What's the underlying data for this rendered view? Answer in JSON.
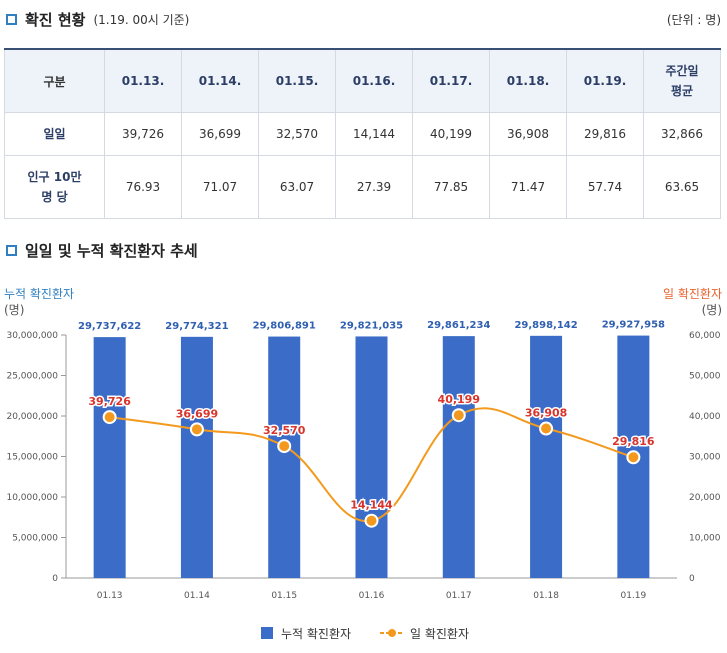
{
  "section1": {
    "title": "확진 현황",
    "subtitle": "(1.19. 00시 기준)",
    "unit": "(단위 : 명)"
  },
  "table": {
    "headers": [
      "구분",
      "01.13.",
      "01.14.",
      "01.15.",
      "01.16.",
      "01.17.",
      "01.18.",
      "01.19.",
      "주간일 평균"
    ],
    "rows": [
      {
        "label": "일일",
        "values": [
          "39,726",
          "36,699",
          "32,570",
          "14,144",
          "40,199",
          "36,908",
          "29,816",
          "32,866"
        ]
      },
      {
        "label": "인구 10만 명 당",
        "values": [
          "76.93",
          "71.07",
          "63.07",
          "27.39",
          "77.85",
          "71.47",
          "57.74",
          "63.65"
        ]
      }
    ]
  },
  "section2": {
    "title": "일일 및 누적 확진환자 추세"
  },
  "chart_data": {
    "type": "bar",
    "categories": [
      "01.13",
      "01.14",
      "01.15",
      "01.16",
      "01.17",
      "01.18",
      "01.19"
    ],
    "series": [
      {
        "name": "누적 확진환자",
        "type": "bar",
        "axis": "left",
        "values": [
          29737622,
          29774321,
          29806891,
          29821035,
          29861234,
          29898142,
          29927958
        ],
        "labels": [
          "29,737,622",
          "29,774,321",
          "29,806,891",
          "29,821,035",
          "29,861,234",
          "29,898,142",
          "29,927,958"
        ],
        "color": "#3a6cc8"
      },
      {
        "name": "일 확진환자",
        "type": "line",
        "axis": "right",
        "values": [
          39726,
          36699,
          32570,
          14144,
          40199,
          36908,
          29816
        ],
        "labels": [
          "39,726",
          "36,699",
          "32,570",
          "14,144",
          "40,199",
          "36,908",
          "29,816"
        ],
        "color": "#f39a1e"
      }
    ],
    "left_axis": {
      "label_line1": "누적 확진환자",
      "label_line2": "(명)",
      "ylim": [
        0,
        30000000
      ],
      "ticks": [
        0,
        5000000,
        10000000,
        15000000,
        20000000,
        25000000,
        30000000
      ],
      "tick_labels": [
        "0",
        "5,000,000",
        "10,000,000",
        "15,000,000",
        "20,000,000",
        "25,000,000",
        "30,000,000"
      ],
      "color": "#2f7fc1"
    },
    "right_axis": {
      "label_line1": "일 확진환자",
      "label_line2": "(명)",
      "ylim": [
        0,
        60000
      ],
      "ticks": [
        0,
        10000,
        20000,
        30000,
        40000,
        50000,
        60000
      ],
      "tick_labels": [
        "0",
        "10,000",
        "20,000",
        "30,000",
        "40,000",
        "50,000",
        "60,000"
      ],
      "color": "#e8602c"
    },
    "bar_label_color": "#2f5fb0",
    "line_label_color": "#d9342b",
    "legend": {
      "position": "bottom"
    },
    "grid": false
  }
}
